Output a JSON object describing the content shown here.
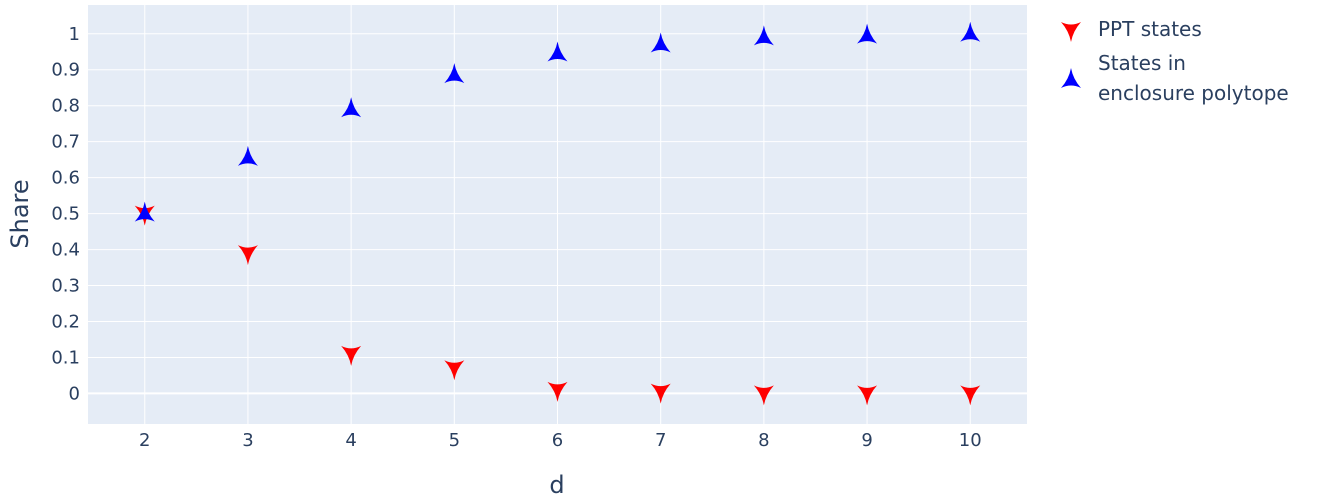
{
  "chart_data": {
    "type": "scatter",
    "xlabel": "d",
    "ylabel": "Share",
    "xlim": [
      1.45,
      10.55
    ],
    "ylim": [
      -0.085,
      1.08
    ],
    "x_ticks": [
      "2",
      "3",
      "4",
      "5",
      "6",
      "7",
      "8",
      "9",
      "10"
    ],
    "y_ticks": [
      "0",
      "0.1",
      "0.2",
      "0.3",
      "0.4",
      "0.5",
      "0.6",
      "0.7",
      "0.8",
      "0.9",
      "1"
    ],
    "grid": true,
    "legend_position": "top-right, outside plot",
    "series": [
      {
        "name": "PPT states",
        "marker": "tri-down",
        "color": "#ff0000",
        "x": [
          2,
          3,
          4,
          5,
          6,
          7,
          8,
          9,
          10
        ],
        "y": [
          0.5,
          0.39,
          0.11,
          0.07,
          0.01,
          0.005,
          0.0,
          0.0,
          0.0
        ]
      },
      {
        "name": "States in\nenclosure polytope",
        "legend_lines": [
          "States in",
          "enclosure polytope"
        ],
        "marker": "tri-up",
        "color": "#0000ff",
        "x": [
          2,
          3,
          4,
          5,
          6,
          7,
          8,
          9,
          10
        ],
        "y": [
          0.5,
          0.655,
          0.79,
          0.885,
          0.945,
          0.97,
          0.99,
          0.995,
          1.0
        ]
      }
    ]
  },
  "colors": {
    "plot_bg": "#e5ecf6",
    "grid": "#ffffff",
    "text": "#2a3f5f"
  }
}
